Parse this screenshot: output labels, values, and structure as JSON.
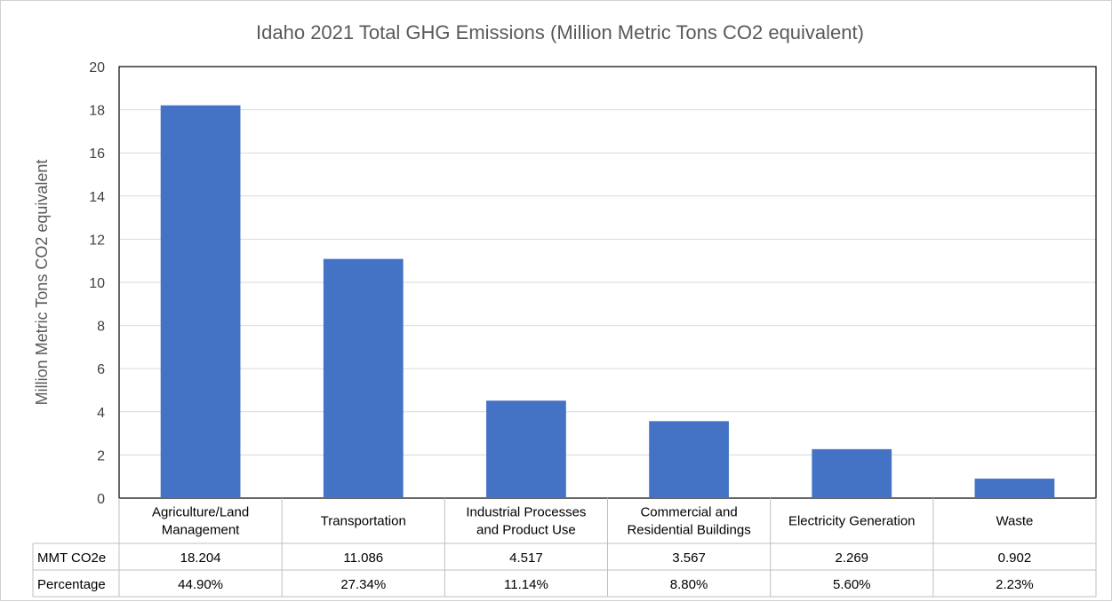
{
  "chart_data": {
    "type": "bar",
    "title": "Idaho 2021 Total GHG Emissions (Million Metric Tons CO2 equivalent)",
    "xlabel": "",
    "ylabel": "Million Metric Tons CO2 equivalent",
    "ylim": [
      0,
      20
    ],
    "yticks": [
      "0",
      "2",
      "4",
      "6",
      "8",
      "10",
      "12",
      "14",
      "16",
      "18",
      "20"
    ],
    "grid": true,
    "bar_color": "#4472C4",
    "categories": [
      [
        "Agriculture/Land",
        "Management"
      ],
      [
        "Transportation"
      ],
      [
        "Industrial Processes",
        "and Product Use"
      ],
      [
        "Commercial and",
        "Residential Buildings"
      ],
      [
        "Electricity Generation"
      ],
      [
        "Waste"
      ]
    ],
    "values": [
      18.204,
      11.086,
      4.517,
      3.567,
      2.269,
      0.902
    ],
    "data_table": {
      "rows": [
        {
          "label": "MMT CO2e",
          "cells": [
            "18.204",
            "11.086",
            "4.517",
            "3.567",
            "2.269",
            "0.902"
          ]
        },
        {
          "label": "Percentage",
          "cells": [
            "44.90%",
            "27.34%",
            "11.14%",
            "8.80%",
            "5.60%",
            "2.23%"
          ]
        }
      ]
    }
  }
}
